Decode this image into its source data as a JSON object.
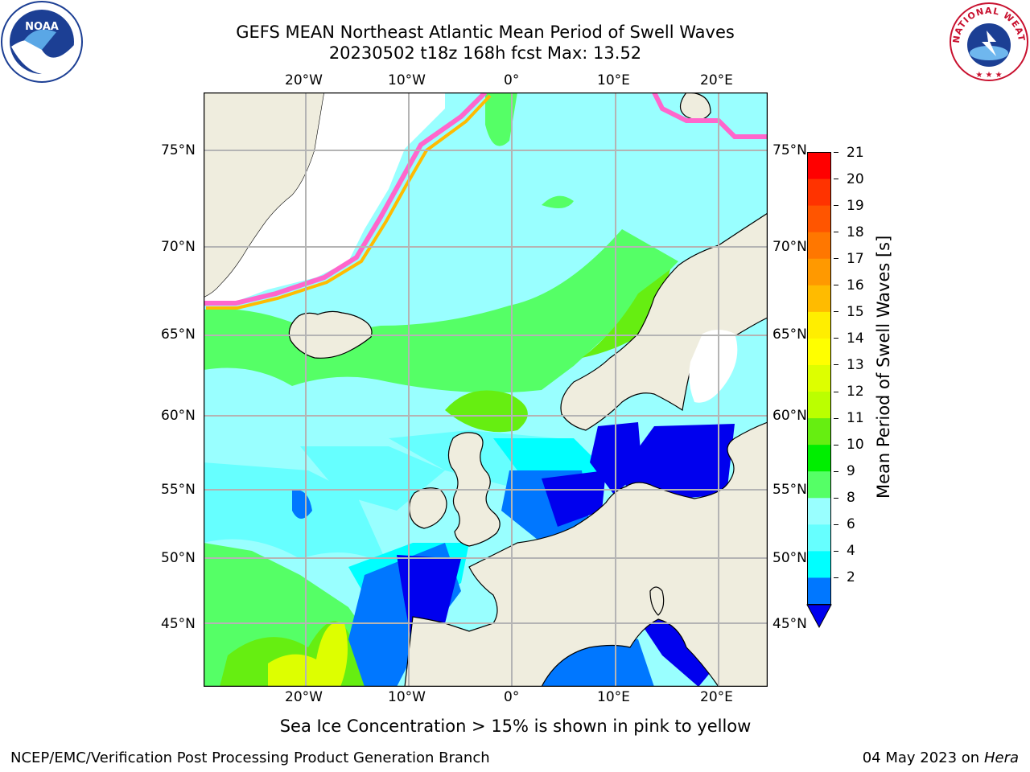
{
  "title": {
    "line1": "GEFS MEAN Northeast Atlantic Mean Period of Swell Waves",
    "line2": "20230502 t18z 168h fcst   Max: 13.52"
  },
  "logos": {
    "left_text": "NOAA",
    "right_text": "NATIONAL WEATHER SERVICE"
  },
  "map": {
    "lon_labels_top": [
      "20°W",
      "10°W",
      "0°",
      "10°E",
      "20°E"
    ],
    "lon_labels_bottom": [
      "20°W",
      "10°W",
      "0°",
      "10°E",
      "20°E"
    ],
    "lat_labels_left": [
      "75°N",
      "70°N",
      "65°N",
      "60°N",
      "55°N",
      "50°N",
      "45°N"
    ],
    "lat_labels_right": [
      "75°N",
      "70°N",
      "65°N",
      "60°N",
      "55°N",
      "50°N",
      "45°N"
    ],
    "colors": {
      "land": "#efedde",
      "ice_white": "#ffffff",
      "grid": "#b4b4b4",
      "ocean_base": "#99ffff"
    }
  },
  "colorbar": {
    "label": "Mean Period of Swell Waves [s]",
    "ticks": [
      "21",
      "20",
      "19",
      "18",
      "17",
      "16",
      "15",
      "14",
      "13",
      "12",
      "11",
      "10",
      "9",
      "8",
      "6",
      "4",
      "2"
    ],
    "colors_top_to_bottom": [
      "#ff0000",
      "#ff3300",
      "#ff5500",
      "#ff7700",
      "#ff9900",
      "#ffbb00",
      "#ffee00",
      "#ffff00",
      "#ddff00",
      "#bbff00",
      "#66ee11",
      "#00ee00",
      "#55ff66",
      "#99ffff",
      "#66ffff",
      "#00ffff",
      "#0077ff"
    ],
    "extend_color": "#0000ee"
  },
  "caption": "Sea Ice Concentration > 15% is shown in pink to yellow",
  "footer": {
    "left": "NCEP/EMC/Verification Post Processing Product Generation Branch",
    "right_date": "04 May 2023 on",
    "right_host": "Hera"
  }
}
